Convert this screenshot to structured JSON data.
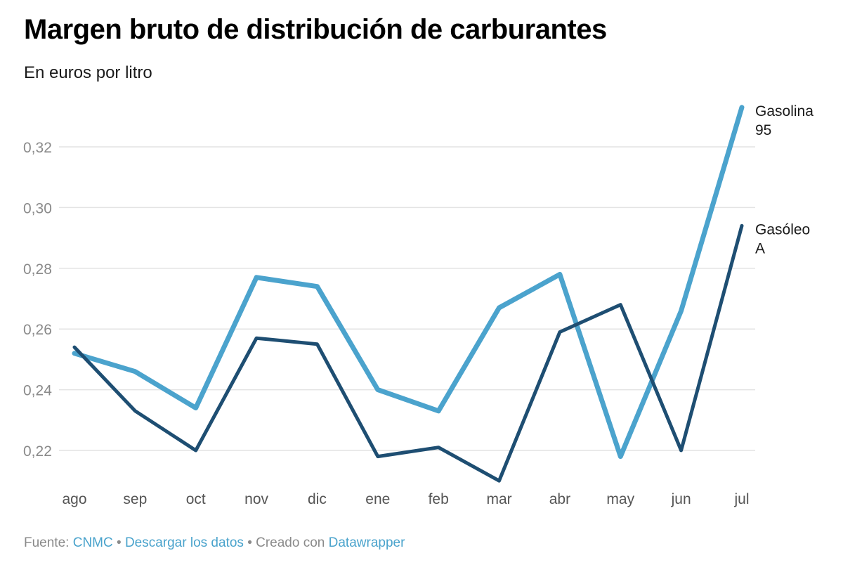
{
  "header": {
    "title": "Margen bruto de distribución de carburantes",
    "subtitle": "En euros por litro"
  },
  "footer": {
    "source_prefix": "Fuente:",
    "source_link": "CNMC",
    "separator": "•",
    "download_link": "Descargar los datos",
    "created_with": "Creado con",
    "tool_link": "Datawrapper"
  },
  "colors": {
    "gasolina": "#4ba3cd",
    "gasoleo": "#1e4e72",
    "grid": "#e3e3e3",
    "link": "#4aa3cc"
  },
  "chart_data": {
    "type": "line",
    "title": "Margen bruto de distribución de carburantes",
    "subtitle": "En euros por litro",
    "xlabel": "",
    "ylabel": "",
    "categories": [
      "ago",
      "sep",
      "oct",
      "nov",
      "dic",
      "ene",
      "feb",
      "mar",
      "abr",
      "may",
      "jun",
      "jul"
    ],
    "y_ticks": [
      "0,22",
      "0,24",
      "0,26",
      "0,28",
      "0,30",
      "0,32"
    ],
    "ylim": [
      0.21,
      0.335
    ],
    "grid": true,
    "legend": "direct labels at line ends",
    "series": [
      {
        "name": "Gasolina 95",
        "label_lines": [
          "Gasolina",
          "95"
        ],
        "color": "#4ba3cd",
        "values": [
          0.252,
          0.246,
          0.234,
          0.277,
          0.274,
          0.24,
          0.233,
          0.267,
          0.278,
          0.218,
          0.266,
          0.333
        ]
      },
      {
        "name": "Gasóleo A",
        "label_lines": [
          "Gasóleo",
          "A"
        ],
        "color": "#1e4e72",
        "values": [
          0.254,
          0.233,
          0.22,
          0.257,
          0.255,
          0.218,
          0.221,
          0.21,
          0.259,
          0.268,
          0.22,
          0.294
        ]
      }
    ]
  }
}
